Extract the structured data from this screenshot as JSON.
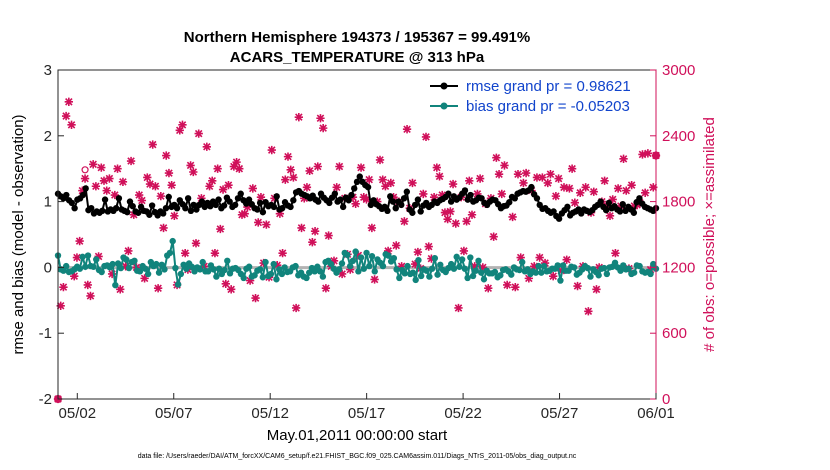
{
  "chart_data": {
    "type": "line",
    "title": "Northern Hemisphere 194373 / 195367 = 99.491%",
    "subtitle": "ACARS_TEMPERATURE @ 313 hPa",
    "xlabel": "May.01,2011 00:00:00 start",
    "ylabel_left": "rmse and bias (model - observation)",
    "ylabel_right": "# of obs: o=possible; ×=assimilated",
    "x_ticks": [
      "05/02",
      "05/07",
      "05/12",
      "05/17",
      "05/22",
      "05/27",
      "06/01"
    ],
    "x_tick_days": [
      1,
      6,
      11,
      16,
      21,
      26,
      31
    ],
    "xlim_days": [
      0,
      31
    ],
    "ylim_left": [
      -2,
      3
    ],
    "left_ticks": [
      "-2",
      "-1",
      "0",
      "1",
      "2",
      "3"
    ],
    "left_tick_values": [
      -2,
      -1,
      0,
      1,
      2,
      3
    ],
    "ylim_right": [
      0,
      3000
    ],
    "right_ticks": [
      "0",
      "600",
      "1200",
      "1800",
      "2400",
      "3000"
    ],
    "right_tick_values": [
      0,
      600,
      1200,
      1800,
      2400,
      3000
    ],
    "footer": "data file: /Users/raeder/DAI/ATM_forcXX/CAM6_setup/f.e21.FHIST_BGC.f09_025.CAM6assim.011/Diags_NTrS_2011-05/obs_diag_output.nc",
    "series": [
      {
        "name": "rmse grand pr = 0.98621",
        "color": "#000000",
        "axis": "left",
        "values": [
          1.12,
          1.08,
          1.05,
          1.1,
          1.02,
          0.98,
          0.9,
          1.03,
          1.05,
          1.1,
          1.2,
          0.87,
          0.9,
          0.82,
          0.85,
          0.83,
          0.86,
          1.03,
          0.85,
          0.88,
          0.86,
          0.9,
          1.05,
          0.88,
          0.86,
          0.84,
          1.0,
          0.93,
          0.85,
          0.83,
          0.92,
          0.86,
          0.85,
          0.8,
          0.94,
          0.84,
          0.79,
          0.85,
          0.82,
          0.9,
          1.07,
          0.92,
          0.95,
          0.9,
          1.02,
          0.96,
          0.9,
          1.05,
          0.86,
          0.95,
          0.88,
          0.95,
          1.0,
          0.92,
          0.98,
          0.93,
          1.0,
          0.95,
          1.03,
          0.9,
          0.94,
          1.06,
          1.0,
          0.92,
          0.95,
          1.05,
          1.12,
          1.02,
          0.97,
          1.03,
          0.96,
          0.9,
          0.88,
          0.98,
          0.84,
          0.99,
          0.93,
          0.95,
          0.92,
          1.08,
          0.88,
          0.9,
          0.99,
          0.94,
          0.92,
          1.02,
          1.14,
          1.16,
          1.12,
          1.1,
          1.08,
          1.05,
          1.09,
          1.03,
          1.0,
          1.12,
          1.06,
          1.02,
          0.98,
          1.06,
          1.12,
          1.0,
          1.03,
          0.92,
          1.06,
          1.02,
          1.1,
          1.2,
          1.3,
          1.38,
          1.3,
          1.25,
          1.22,
          0.95,
          1.02,
          0.96,
          0.93,
          0.89,
          0.92,
          0.86,
          1.08,
          1.0,
          0.9,
          1.0,
          0.95,
          1.05,
          1.15,
          0.88,
          0.83,
          0.95,
          1.03,
          0.85,
          0.94,
          0.98,
          0.92,
          0.95,
          1.0,
          0.98,
          1.02,
          1.04,
          1.07,
          1.12,
          1.0,
          1.08,
          1.03,
          1.06,
          1.12,
          1.17,
          1.03,
          1.1,
          1.0,
          1.02,
          1.06,
          1.05,
          0.98,
          0.95,
          1.0,
          1.03,
          1.02,
          0.96,
          0.9,
          0.93,
          0.94,
          0.99,
          1.07,
          1.05,
          1.12,
          1.14,
          1.16,
          1.15,
          1.17,
          1.22,
          1.11,
          1.05,
          0.95,
          0.89,
          0.9,
          0.86,
          0.83,
          0.85,
          0.78,
          0.74,
          0.82,
          0.87,
          0.92,
          0.79,
          0.83,
          0.85,
          0.88,
          0.82,
          0.88,
          0.86,
          0.84,
          0.87,
          0.92,
          0.95,
          1.0,
          0.92,
          0.87,
          0.98,
          0.9,
          0.93,
          0.88,
          0.85,
          0.96,
          0.86,
          0.92,
          0.88,
          0.83,
          0.99,
          1.05,
          0.97,
          0.92,
          0.9,
          0.88,
          0.86,
          0.9
        ]
      },
      {
        "name": "bias grand pr = -0.05203",
        "color": "#11847c",
        "axis": "left",
        "values": [
          0.18,
          -0.03,
          -0.05,
          0.02,
          -0.07,
          -0.06,
          -0.03,
          0.01,
          -0.02,
          0.16,
          0.01,
          0.18,
          0.02,
          0.01,
          0.12,
          -0.04,
          -0.07,
          0.02,
          0.03,
          0.0,
          0.05,
          -0.27,
          0.06,
          -0.01,
          0.15,
          0.12,
          -0.01,
          0.08,
          0.1,
          -0.05,
          -0.06,
          0.02,
          -0.02,
          -0.1,
          0.08,
          0.02,
          0.05,
          -0.08,
          0.04,
          -0.03,
          0.18,
          0.22,
          0.4,
          -0.01,
          -0.26,
          -0.1,
          0.04,
          -0.02,
          0.06,
          0.01,
          -0.06,
          0.0,
          -0.03,
          0.08,
          -0.06,
          -0.06,
          0.03,
          -0.03,
          -0.14,
          -0.02,
          -0.1,
          -0.04,
          0.1,
          -0.09,
          -0.02,
          -0.01,
          -0.04,
          -0.1,
          -0.16,
          -0.02,
          0.01,
          -0.14,
          -0.12,
          -0.05,
          -0.03,
          -0.15,
          0.08,
          -0.13,
          -0.1,
          0.05,
          -0.18,
          -0.03,
          -0.1,
          0.0,
          -0.07,
          -0.06,
          0.0,
          0.02,
          -0.12,
          -0.08,
          -0.14,
          -0.16,
          -0.08,
          -0.01,
          -0.06,
          0.01,
          -0.06,
          -0.14,
          0.08,
          0.1,
          0.05,
          -0.02,
          -0.08,
          -0.03,
          0.06,
          0.22,
          0.19,
          0.02,
          0.1,
          0.24,
          -0.06,
          0.15,
          -0.02,
          0.22,
          0.02,
          0.17,
          -0.06,
          0.12,
          0.07,
          0.02,
          0.2,
          0.18,
          0.09,
          0.14,
          -0.03,
          -0.16,
          -0.04,
          -0.09,
          0.02,
          -0.1,
          -0.08,
          -0.19,
          0.11,
          -0.13,
          -0.03,
          -0.05,
          -0.14,
          -0.02,
          0.14,
          -0.11,
          0.04,
          -0.04,
          -0.07,
          -0.01,
          0.05,
          -0.02,
          0.16,
          0.01,
          0.12,
          -0.02,
          -0.16,
          0.15,
          -0.13,
          -0.05,
          0.1,
          -0.08,
          -0.18,
          -0.05,
          -0.09,
          -0.09,
          -0.07,
          -0.15,
          -0.12,
          -0.04,
          -0.03,
          -0.06,
          -0.11,
          0.0,
          -0.03,
          -0.04,
          0.08,
          -0.06,
          -0.03,
          -0.1,
          -0.06,
          -0.08,
          0.02,
          -0.08,
          0.02,
          -0.06,
          -0.05,
          -0.02,
          -0.02,
          0.03,
          -0.2,
          0.03,
          -0.05,
          -0.05,
          0.01,
          0.0,
          -0.11,
          -0.08,
          -0.03,
          0.02,
          -0.01,
          -0.14,
          -0.03,
          -0.07,
          -0.12,
          -0.02,
          -0.01,
          -0.1,
          0.0,
          0.01,
          0.07,
          0.0,
          -0.05,
          0.03,
          -0.03,
          -0.02,
          -0.1,
          -0.08,
          0.03,
          0.02,
          -0.06,
          -0.08,
          -0.07,
          -0.1,
          0.05,
          -0.02
        ]
      },
      {
        "name": "obs_possible",
        "color": "#d0105a",
        "axis": "right",
        "values": [
          0,
          850,
          1020,
          2580,
          2710,
          2500,
          1120,
          1290,
          1440,
          1900,
          2090,
          1040,
          940,
          2140,
          1940,
          1300,
          2110,
          1990,
          1900,
          2010,
          1140,
          1860,
          2100,
          1000,
          1980,
          1210,
          1350,
          2170,
          1680,
          1200,
          1860,
          1810,
          1100,
          2020,
          1960,
          2320,
          1940,
          1010,
          1850,
          1560,
          2220,
          2060,
          1950,
          1670,
          1040,
          2450,
          2500,
          1330,
          1180,
          2130,
          2070,
          1420,
          2420,
          1830,
          1210,
          2300,
          1940,
          1990,
          1330,
          2100,
          1550,
          1910,
          1050,
          1950,
          1000,
          2120,
          2160,
          2100,
          1680,
          1690,
          1750,
          1080,
          1920,
          920,
          1610,
          1840,
          1240,
          1590,
          1110,
          2270,
          1830,
          1220,
          1690,
          1330,
          2000,
          2210,
          2090,
          2020,
          830,
          2570,
          1560,
          1830,
          1930,
          2080,
          1430,
          1530,
          2120,
          2560,
          2470,
          1010,
          1490,
          1210,
          1260,
          1930,
          2120,
          1140,
          1830,
          1320,
          1180,
          1840,
          1780,
          1310,
          2110,
          1840,
          1820,
          2000,
          1560,
          1090,
          1800,
          2180,
          2000,
          1940,
          1350,
          1970,
          1840,
          1400,
          1800,
          1210,
          1620,
          2460,
          1740,
          1970,
          1230,
          1340,
          1190,
          1870,
          2390,
          1390,
          1280,
          1840,
          2110,
          2030,
          1860,
          1700,
          1640,
          1710,
          1960,
          1600,
          830,
          1840,
          1350,
          1620,
          1990,
          1680,
          1210,
          1870,
          2010,
          1200,
          1780,
          1010,
          1830,
          1480,
          2200,
          2050,
          1870,
          2130,
          1040,
          2600,
          1660,
          1020,
          2050,
          1290,
          1970,
          2060,
          1100,
          1900,
          1210,
          2020,
          1290,
          2020,
          1240,
          1970,
          2050,
          1120,
          1850,
          2010,
          1170,
          1930,
          1270,
          1920,
          2100,
          1790,
          1030,
          1880,
          1210,
          1930,
          800,
          1700,
          1890,
          1000,
          1200,
          1800,
          1990,
          1760,
          1670,
          1820,
          1330,
          1920,
          1760,
          2190,
          1900,
          1190,
          1950,
          1760,
          1770,
          1790,
          2230,
          1880,
          2240,
          1180,
          1930,
          2220
        ]
      },
      {
        "name": "obs_assimilated",
        "color": "#d0105a",
        "axis": "right",
        "values": [
          0,
          850,
          1020,
          2580,
          2710,
          2500,
          1120,
          1290,
          1440,
          1900,
          2010,
          1040,
          940,
          2140,
          1940,
          1300,
          2110,
          1990,
          1900,
          2010,
          1140,
          1860,
          2100,
          1000,
          1980,
          1210,
          1350,
          2170,
          1680,
          1200,
          1860,
          1810,
          1100,
          2020,
          1960,
          2320,
          1940,
          1010,
          1850,
          1560,
          2220,
          2060,
          1950,
          1670,
          1040,
          2450,
          2500,
          1330,
          1180,
          2130,
          2070,
          1420,
          2420,
          1830,
          1210,
          2300,
          1940,
          1990,
          1330,
          2100,
          1550,
          1910,
          1050,
          1950,
          1000,
          2120,
          2160,
          2100,
          1680,
          1690,
          1750,
          1080,
          1920,
          920,
          1610,
          1840,
          1240,
          1590,
          1110,
          2270,
          1830,
          1220,
          1690,
          1330,
          2000,
          2210,
          2090,
          2020,
          830,
          2570,
          1560,
          1830,
          1930,
          2080,
          1430,
          1530,
          2120,
          2560,
          2470,
          1010,
          1490,
          1210,
          1260,
          1930,
          2120,
          1140,
          1830,
          1320,
          1180,
          1840,
          1780,
          1310,
          2110,
          1840,
          1820,
          2000,
          1560,
          1090,
          1800,
          2180,
          2000,
          1940,
          1350,
          1970,
          1840,
          1400,
          1800,
          1210,
          1620,
          2460,
          1740,
          1970,
          1230,
          1340,
          1190,
          1870,
          2390,
          1390,
          1280,
          1840,
          2110,
          2030,
          1860,
          1700,
          1640,
          1710,
          1960,
          1600,
          830,
          1840,
          1350,
          1620,
          1990,
          1680,
          1210,
          1870,
          2010,
          1200,
          1780,
          1010,
          1830,
          1480,
          2200,
          2050,
          1870,
          2130,
          1040,
          2600,
          1660,
          1020,
          2050,
          1290,
          1970,
          2060,
          1100,
          1900,
          1210,
          2020,
          1290,
          2020,
          1240,
          1970,
          2050,
          1120,
          1850,
          2010,
          1170,
          1930,
          1270,
          1920,
          2100,
          1790,
          1030,
          1880,
          1210,
          1930,
          800,
          1700,
          1890,
          1000,
          1200,
          1800,
          1990,
          1760,
          1670,
          1820,
          1330,
          1920,
          1760,
          2190,
          1900,
          1190,
          1950,
          1760,
          1770,
          1790,
          2230,
          1880,
          2240,
          1180,
          1930,
          2220
        ]
      }
    ]
  }
}
